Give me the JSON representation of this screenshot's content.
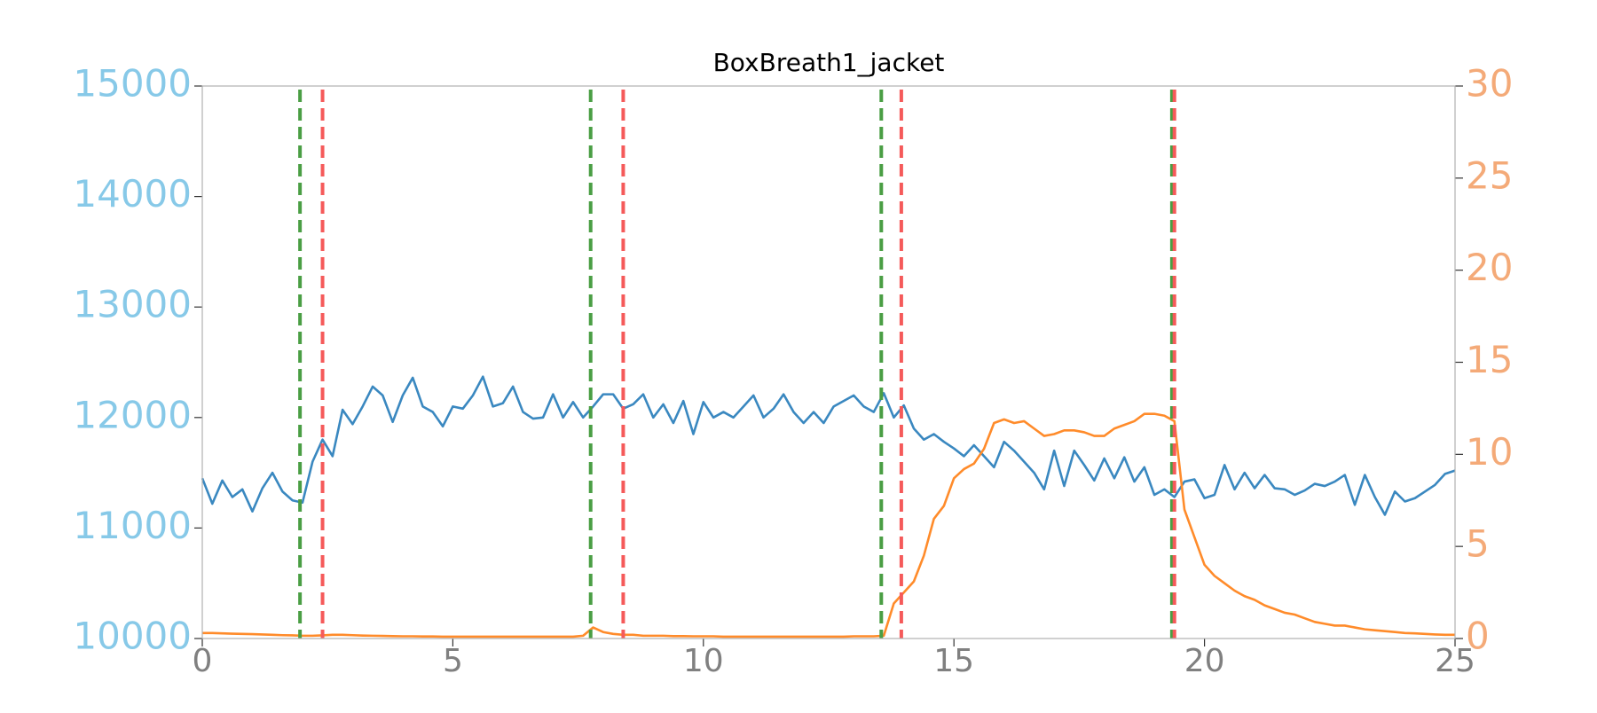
{
  "chart_data": {
    "type": "line",
    "title": "BoxBreath1_jacket",
    "x": [
      0,
      0.2,
      0.4,
      0.6,
      0.8,
      1,
      1.2,
      1.4,
      1.6,
      1.8,
      2,
      2.2,
      2.4,
      2.6,
      2.8,
      3,
      3.2,
      3.4,
      3.6,
      3.8,
      4,
      4.2,
      4.4,
      4.6,
      4.8,
      5,
      5.2,
      5.4,
      5.6,
      5.8,
      6,
      6.2,
      6.4,
      6.6,
      6.8,
      7,
      7.2,
      7.4,
      7.6,
      7.8,
      8,
      8.2,
      8.4,
      8.6,
      8.8,
      9,
      9.2,
      9.4,
      9.6,
      9.8,
      10,
      10.2,
      10.4,
      10.6,
      10.8,
      11,
      11.2,
      11.4,
      11.6,
      11.8,
      12,
      12.2,
      12.4,
      12.6,
      12.8,
      13,
      13.2,
      13.4,
      13.6,
      13.8,
      14,
      14.2,
      14.4,
      14.6,
      14.8,
      15,
      15.2,
      15.4,
      15.6,
      15.8,
      16,
      16.2,
      16.4,
      16.6,
      16.8,
      17,
      17.2,
      17.4,
      17.6,
      17.8,
      18,
      18.2,
      18.4,
      18.6,
      18.8,
      19,
      19.2,
      19.4,
      19.6,
      19.8,
      20,
      20.2,
      20.4,
      20.6,
      20.8,
      21,
      21.2,
      21.4,
      21.6,
      21.8,
      22,
      22.2,
      22.4,
      22.6,
      22.8,
      23,
      23.2,
      23.4,
      23.6,
      23.8,
      24,
      24.2,
      24.4,
      24.6,
      24.8,
      25
    ],
    "series": [
      {
        "name": "jacket",
        "color": "#3a88c0",
        "axis": "y",
        "values": [
          11450,
          11220,
          11430,
          11280,
          11350,
          11150,
          11360,
          11500,
          11330,
          11250,
          11230,
          11600,
          11800,
          11650,
          12070,
          11940,
          12100,
          12280,
          12200,
          11960,
          12200,
          12360,
          12100,
          12050,
          11920,
          12100,
          12080,
          12200,
          12370,
          12100,
          12130,
          12280,
          12050,
          11990,
          12000,
          12210,
          12000,
          12140,
          12000,
          12100,
          12210,
          12210,
          12080,
          12120,
          12210,
          12000,
          12120,
          11950,
          12150,
          11850,
          12140,
          12000,
          12050,
          12000,
          12100,
          12200,
          12000,
          12080,
          12210,
          12050,
          11950,
          12050,
          11950,
          12100,
          12150,
          12200,
          12100,
          12050,
          12220,
          12000,
          12110,
          11900,
          11800,
          11850,
          11780,
          11720,
          11650,
          11750,
          11650,
          11550,
          11780,
          11700,
          11600,
          11500,
          11350,
          11700,
          11380,
          11700,
          11570,
          11430,
          11630,
          11450,
          11640,
          11420,
          11550,
          11300,
          11350,
          11280,
          11420,
          11440,
          11270,
          11300,
          11570,
          11350,
          11500,
          11360,
          11480,
          11360,
          11350,
          11300,
          11340,
          11400,
          11380,
          11420,
          11480,
          11210,
          11480,
          11280,
          11120,
          11330,
          11240,
          11270,
          11330,
          11390,
          11490,
          11520
        ]
      },
      {
        "name": "orange",
        "color": "#ff8b2a",
        "axis": "y2",
        "values": [
          0.3,
          0.3,
          0.28,
          0.26,
          0.25,
          0.24,
          0.22,
          0.2,
          0.18,
          0.17,
          0.15,
          0.15,
          0.17,
          0.2,
          0.2,
          0.18,
          0.16,
          0.15,
          0.14,
          0.13,
          0.12,
          0.12,
          0.11,
          0.11,
          0.1,
          0.1,
          0.1,
          0.1,
          0.1,
          0.1,
          0.1,
          0.1,
          0.1,
          0.1,
          0.1,
          0.1,
          0.1,
          0.1,
          0.15,
          0.6,
          0.35,
          0.25,
          0.2,
          0.2,
          0.15,
          0.15,
          0.15,
          0.13,
          0.13,
          0.12,
          0.12,
          0.12,
          0.1,
          0.1,
          0.1,
          0.1,
          0.1,
          0.1,
          0.1,
          0.1,
          0.1,
          0.1,
          0.1,
          0.1,
          0.1,
          0.12,
          0.12,
          0.12,
          0.15,
          1.9,
          2.5,
          3.1,
          4.5,
          6.5,
          7.2,
          8.7,
          9.2,
          9.5,
          10.3,
          11.7,
          11.9,
          11.7,
          11.8,
          11.4,
          11.0,
          11.1,
          11.3,
          11.3,
          11.2,
          11.0,
          11.0,
          11.4,
          11.6,
          11.8,
          12.2,
          12.2,
          12.1,
          11.8,
          7.0,
          5.5,
          4.0,
          3.4,
          3.0,
          2.6,
          2.3,
          2.1,
          1.8,
          1.6,
          1.4,
          1.3,
          1.1,
          0.9,
          0.8,
          0.7,
          0.7,
          0.6,
          0.5,
          0.45,
          0.4,
          0.35,
          0.3,
          0.28,
          0.25,
          0.22,
          0.2,
          0.2
        ]
      }
    ],
    "vlines": [
      {
        "x": 1.95,
        "color": "#4a9e44"
      },
      {
        "x": 2.4,
        "color": "#f55a5a"
      },
      {
        "x": 7.75,
        "color": "#4a9e44"
      },
      {
        "x": 8.4,
        "color": "#f55a5a"
      },
      {
        "x": 13.55,
        "color": "#4a9e44"
      },
      {
        "x": 13.95,
        "color": "#f55a5a"
      },
      {
        "x": 19.35,
        "color": "#4a9e44"
      },
      {
        "x": 19.4,
        "color": "#f55a5a"
      }
    ],
    "xlim": [
      0,
      25
    ],
    "xticks": [
      0,
      5,
      10,
      15,
      20,
      25
    ],
    "ylim": [
      10000,
      15000
    ],
    "yticks": [
      10000,
      11000,
      12000,
      13000,
      14000,
      15000
    ],
    "ytick_color": "#87c9e8",
    "y2lim": [
      0,
      30
    ],
    "y2ticks": [
      0,
      5,
      10,
      15,
      20,
      25,
      30
    ],
    "y2tick_color": "#f4aa78",
    "xtick_color": "#808080"
  }
}
